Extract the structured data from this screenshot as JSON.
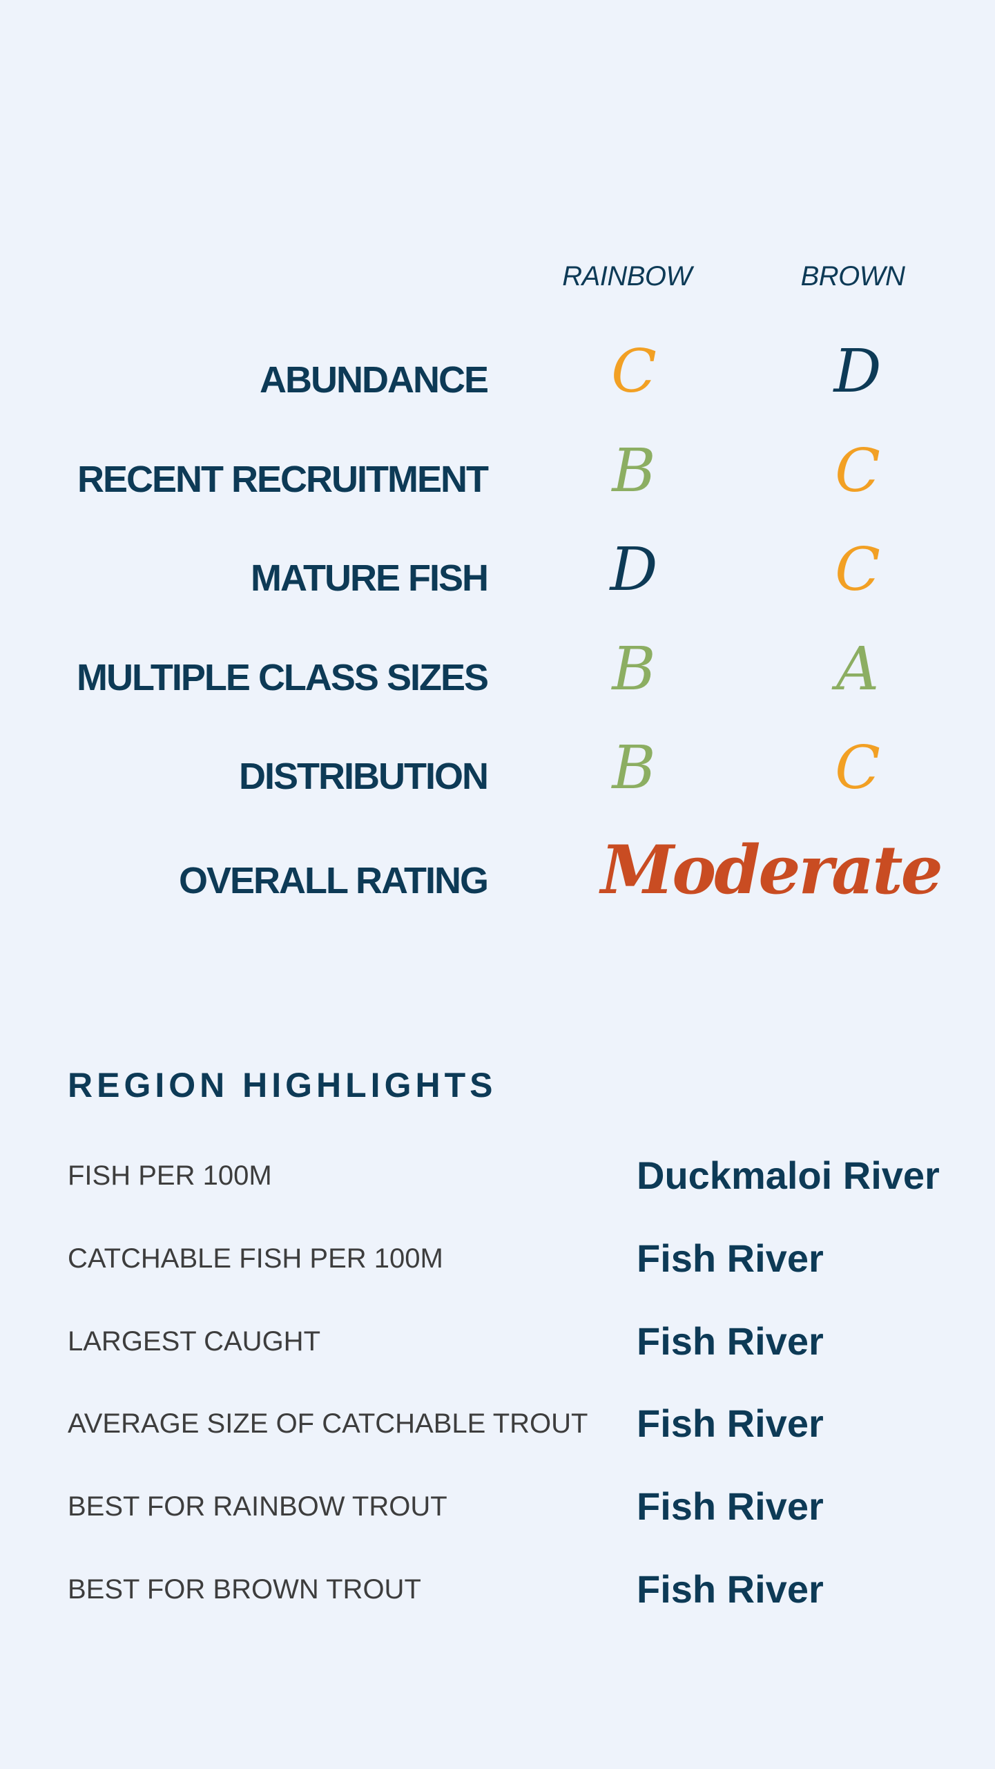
{
  "ratings": {
    "columns": [
      "RAINBOW",
      "BROWN"
    ],
    "colors": {
      "A": "#8cae62",
      "B": "#8cae62",
      "C": "#f2a024",
      "D": "#0d3a56",
      "overall": "#c94c22"
    },
    "rows": [
      {
        "label": "ABUNDANCE",
        "rainbow": "C",
        "brown": "D"
      },
      {
        "label": "RECENT RECRUITMENT",
        "rainbow": "B",
        "brown": "C"
      },
      {
        "label": "MATURE FISH",
        "rainbow": "D",
        "brown": "C"
      },
      {
        "label": "MULTIPLE CLASS SIZES",
        "rainbow": "B",
        "brown": "A"
      },
      {
        "label": "DISTRIBUTION",
        "rainbow": "B",
        "brown": "C"
      }
    ],
    "overall": {
      "label": "OVERALL RATING",
      "value": "Moderate"
    }
  },
  "highlights": {
    "title": "REGION HIGHLIGHTS",
    "items": [
      {
        "label": "FISH PER 100M",
        "value": "Duckmaloi River"
      },
      {
        "label": "CATCHABLE FISH PER 100M",
        "value": "Fish River"
      },
      {
        "label": "LARGEST CAUGHT",
        "value": "Fish River"
      },
      {
        "label": "AVERAGE SIZE OF CATCHABLE TROUT",
        "value": "Fish River"
      },
      {
        "label": "BEST FOR RAINBOW TROUT",
        "value": "Fish River"
      },
      {
        "label": "BEST FOR BROWN TROUT",
        "value": "Fish River"
      }
    ]
  }
}
